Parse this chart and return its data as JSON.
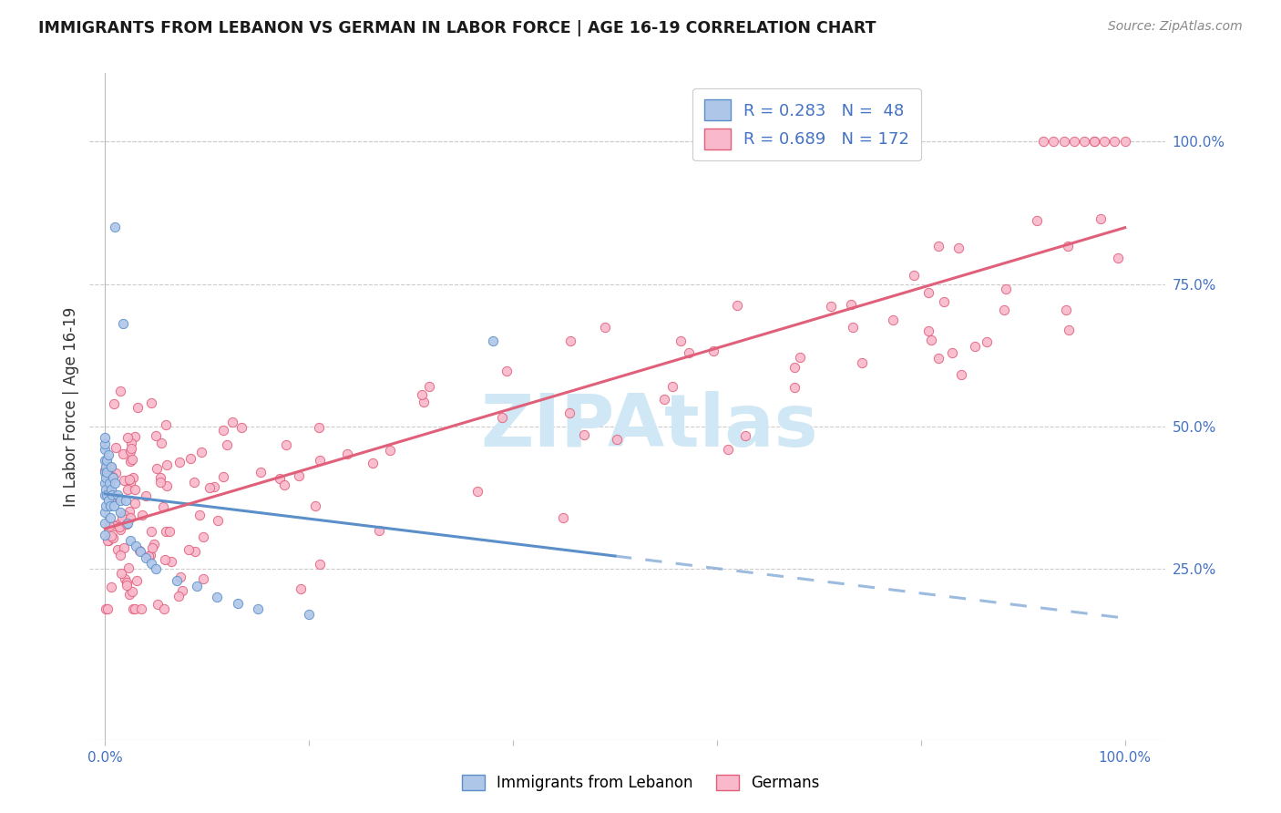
{
  "title": "IMMIGRANTS FROM LEBANON VS GERMAN IN LABOR FORCE | AGE 16-19 CORRELATION CHART",
  "source": "Source: ZipAtlas.com",
  "ylabel": "In Labor Force | Age 16-19",
  "color_lebanon_fill": "#aec6e8",
  "color_lebanon_edge": "#5b8fc9",
  "color_germany_fill": "#f9b8cb",
  "color_germany_edge": "#e0607a",
  "color_line_blue": "#5b8fc9",
  "color_line_pink": "#e0607a",
  "background_color": "#ffffff",
  "grid_color": "#cccccc",
  "watermark_color": "#d0e8f5",
  "title_color": "#1a1a1a",
  "label_color": "#4472C4",
  "ylabel_color": "#333333"
}
